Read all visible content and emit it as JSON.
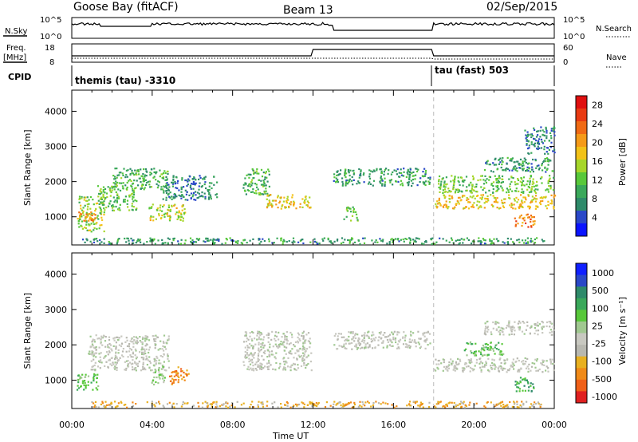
{
  "header": {
    "station": "Goose Bay (fitACF)",
    "beam": "Beam 13",
    "date": "02/Sep/2015"
  },
  "noise_panel": {
    "left_label": "N.Sky",
    "right_label": "N.Search",
    "left_ticks": [
      "10^5",
      "10^0"
    ],
    "right_ticks": [
      "10^5",
      "10^0"
    ]
  },
  "freq_panel": {
    "left_label_1": "Freq.",
    "left_label_2": "[MHz]",
    "right_label": "Nave",
    "left_ticks": [
      "18",
      "8"
    ],
    "right_ticks": [
      "60",
      "0"
    ]
  },
  "cpid_panel": {
    "label": "CPID",
    "segments": [
      {
        "name": "themis (tau) -3310",
        "start": "00:00",
        "end": "18:00"
      },
      {
        "name": "tau (fast) 503",
        "start": "18:00",
        "end": "24:00"
      }
    ]
  },
  "colors": {
    "power_scale": [
      "#0a14ff",
      "#2a48c8",
      "#2e8a6a",
      "#3aa85a",
      "#58c83a",
      "#a6d62a",
      "#f2c218",
      "#f59a18",
      "#f06a14",
      "#e83a12",
      "#e01010"
    ],
    "velocity_scale": [
      "#1020ff",
      "#2a48c8",
      "#2e8a6a",
      "#3aa85a",
      "#58c83a",
      "#a0c890",
      "#c8c8c0",
      "#b8b8b0",
      "#e8b020",
      "#f08a18",
      "#f06018",
      "#e02020"
    ]
  },
  "chart_data": [
    {
      "type": "heatmap",
      "title": "",
      "xlabel": "Time UT",
      "ylabel": "Slant Range [km]",
      "x_ticks": [
        "00:00",
        "04:00",
        "08:00",
        "12:00",
        "16:00",
        "20:00",
        "00:00"
      ],
      "y_ticks": [
        "1000",
        "2000",
        "3000",
        "4000"
      ],
      "ylim": [
        200,
        4600
      ],
      "colorbar": {
        "label": "Power [dB]",
        "ticks": [
          "4",
          "8",
          "12",
          "16",
          "20",
          "24",
          "28"
        ],
        "range": [
          0,
          30
        ]
      },
      "regions": [
        {
          "t0": 0.3,
          "t1": 1.6,
          "r0": 600,
          "r1": 1600,
          "level": 14
        },
        {
          "t0": 0.2,
          "t1": 1.2,
          "r0": 900,
          "r1": 1200,
          "level": 22
        },
        {
          "t0": 1.2,
          "t1": 3.2,
          "r0": 1200,
          "r1": 1900,
          "level": 12
        },
        {
          "t0": 2.0,
          "t1": 4.8,
          "r0": 1800,
          "r1": 2400,
          "level": 10
        },
        {
          "t0": 3.8,
          "t1": 5.6,
          "r0": 900,
          "r1": 1400,
          "level": 16
        },
        {
          "t0": 4.5,
          "t1": 7.2,
          "r0": 1500,
          "r1": 2200,
          "level": 6
        },
        {
          "t0": 8.5,
          "t1": 9.8,
          "r0": 1600,
          "r1": 2400,
          "level": 10
        },
        {
          "t0": 9.6,
          "t1": 11.9,
          "r0": 1250,
          "r1": 1650,
          "level": 18
        },
        {
          "t0": 13.0,
          "t1": 17.8,
          "r0": 1900,
          "r1": 2400,
          "level": 8
        },
        {
          "t0": 13.5,
          "t1": 14.2,
          "r0": 900,
          "r1": 1300,
          "level": 12
        },
        {
          "t0": 18.0,
          "t1": 24.0,
          "r0": 1250,
          "r1": 1650,
          "level": 18
        },
        {
          "t0": 18.2,
          "t1": 24.0,
          "r0": 1700,
          "r1": 2200,
          "level": 12
        },
        {
          "t0": 20.5,
          "t1": 24.0,
          "r0": 2300,
          "r1": 2700,
          "level": 8
        },
        {
          "t0": 22.0,
          "t1": 23.0,
          "r0": 700,
          "r1": 1100,
          "level": 22
        },
        {
          "t0": 22.5,
          "t1": 24.0,
          "r0": 2800,
          "r1": 3600,
          "level": 6
        },
        {
          "t0": 0.5,
          "t1": 23.5,
          "r0": 250,
          "r1": 420,
          "level": 8
        }
      ]
    },
    {
      "type": "heatmap",
      "title": "",
      "xlabel": "Time UT",
      "ylabel": "Slant Range [km]",
      "x_ticks": [
        "00:00",
        "04:00",
        "08:00",
        "12:00",
        "16:00",
        "20:00",
        "00:00"
      ],
      "y_ticks": [
        "1000",
        "2000",
        "3000",
        "4000"
      ],
      "ylim": [
        200,
        4600
      ],
      "colorbar": {
        "label": "Velocity [m s⁻¹]",
        "ticks": [
          "1000",
          "500",
          "100",
          "25",
          "-25",
          "-100",
          "-500",
          "-1000"
        ],
        "range": [
          -1000,
          1000
        ]
      },
      "regions": [
        {
          "t0": 0.2,
          "t1": 1.3,
          "r0": 700,
          "r1": 1200,
          "level": 4
        },
        {
          "t0": 0.8,
          "t1": 4.8,
          "r0": 1300,
          "r1": 2300,
          "level": 6
        },
        {
          "t0": 3.8,
          "t1": 4.6,
          "r0": 900,
          "r1": 1400,
          "level": 5
        },
        {
          "t0": 4.8,
          "t1": 5.8,
          "r0": 900,
          "r1": 1400,
          "level": 9
        },
        {
          "t0": 8.5,
          "t1": 11.9,
          "r0": 1300,
          "r1": 2400,
          "level": 6
        },
        {
          "t0": 13.0,
          "t1": 17.8,
          "r0": 1900,
          "r1": 2400,
          "level": 6
        },
        {
          "t0": 18.0,
          "t1": 24.0,
          "r0": 1250,
          "r1": 1650,
          "level": 6
        },
        {
          "t0": 20.5,
          "t1": 24.0,
          "r0": 2300,
          "r1": 2700,
          "level": 6
        },
        {
          "t0": 19.5,
          "t1": 21.5,
          "r0": 1700,
          "r1": 2100,
          "level": 4
        },
        {
          "t0": 22.0,
          "t1": 23.0,
          "r0": 700,
          "r1": 1100,
          "level": 3
        },
        {
          "t0": 0.5,
          "t1": 23.5,
          "r0": 250,
          "r1": 420,
          "level": 8
        }
      ]
    }
  ]
}
